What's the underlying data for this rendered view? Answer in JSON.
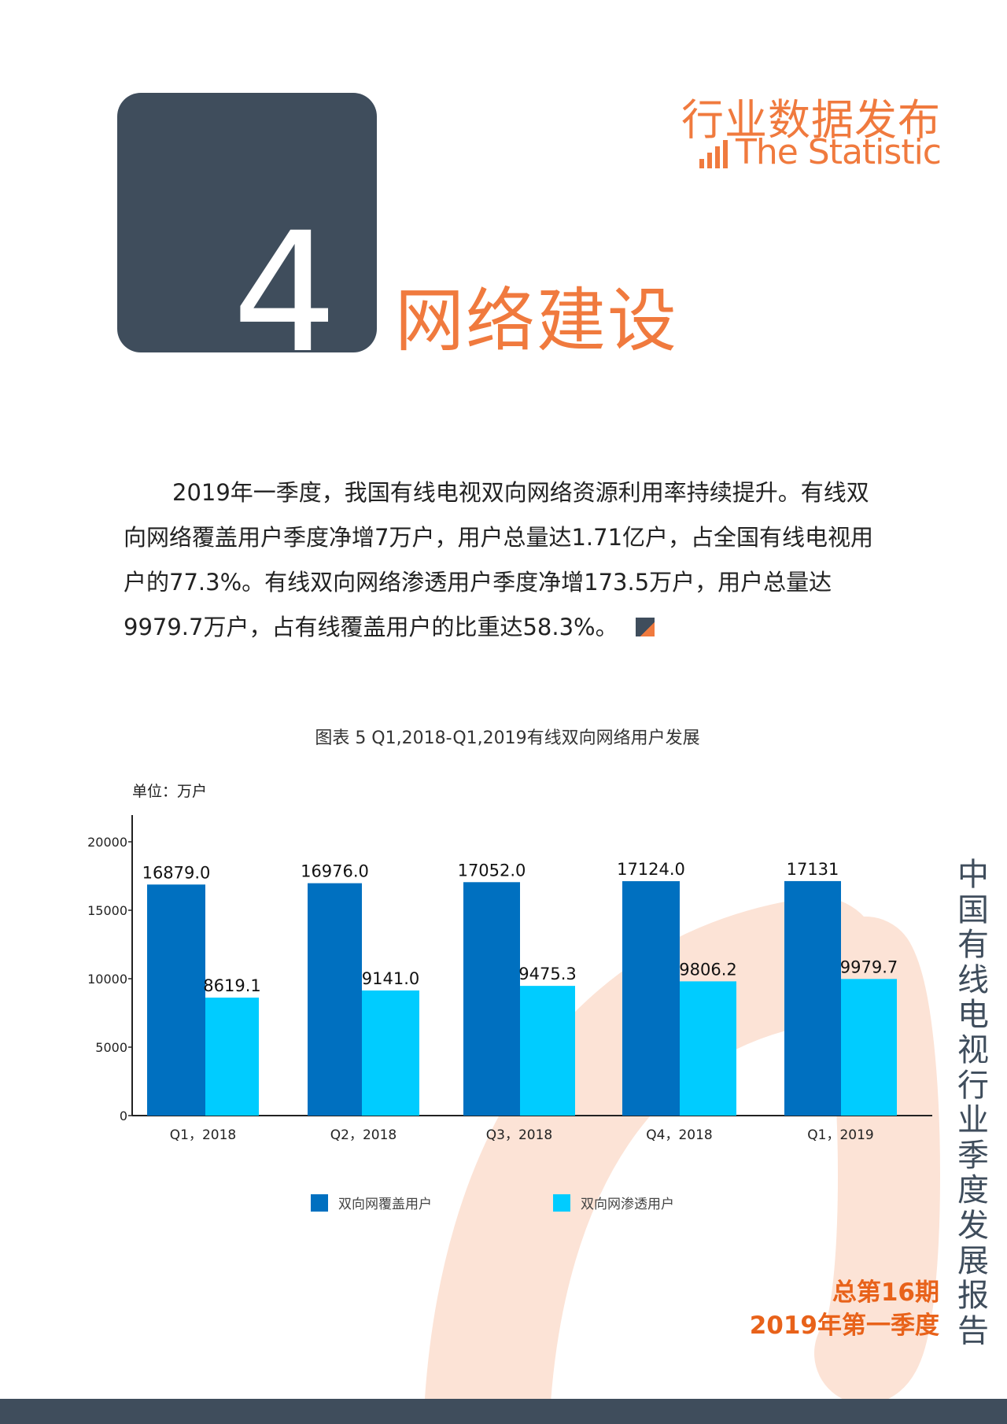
{
  "header": {
    "brand_cn": "行业数据发布",
    "brand_en": "The Statistic"
  },
  "chapter": {
    "number": "4",
    "title": "网络建设"
  },
  "paragraph": "2019年一季度，我国有线电视双向网络资源利用率持续提升。有线双向网络覆盖用户季度净增7万户，用户总量达1.71亿户，占全国有线电视用户的77.3%。有线双向网络渗透用户季度净增173.5万户，用户总量达9979.7万户，占有线覆盖用户的比重达58.3%。",
  "figure_caption": "图表 5 Q1,2018-Q1,2019有线双向网络用户发展",
  "chart_data": {
    "type": "bar",
    "unit_label": "单位：万户",
    "categories": [
      "Q1，2018",
      "Q2，2018",
      "Q3，2018",
      "Q4，2018",
      "Q1，2019"
    ],
    "series": [
      {
        "name": "双向网覆盖用户",
        "color": "#0070c0",
        "values": [
          16879.0,
          16976.0,
          17052.0,
          17124.0,
          17131
        ],
        "labels": [
          "16879.0",
          "16976.0",
          "17052.0",
          "17124.0",
          "17131"
        ]
      },
      {
        "name": "双向网渗透用户",
        "color": "#00ccff",
        "values": [
          8619.1,
          9141.0,
          9475.3,
          9806.2,
          9979.7
        ],
        "labels": [
          "8619.1",
          "9141.0",
          "9475.3",
          "9806.2",
          "9979.7"
        ]
      }
    ],
    "yticks": [
      "0",
      "5000",
      "10000",
      "15000",
      "20000"
    ],
    "ylim": [
      0,
      20000
    ],
    "grid": false,
    "legend_position": "bottom"
  },
  "side_title": "中国有线电视行业季度发展报告",
  "issue": {
    "number": "总第16期",
    "quarter": "2019年第一季度"
  }
}
